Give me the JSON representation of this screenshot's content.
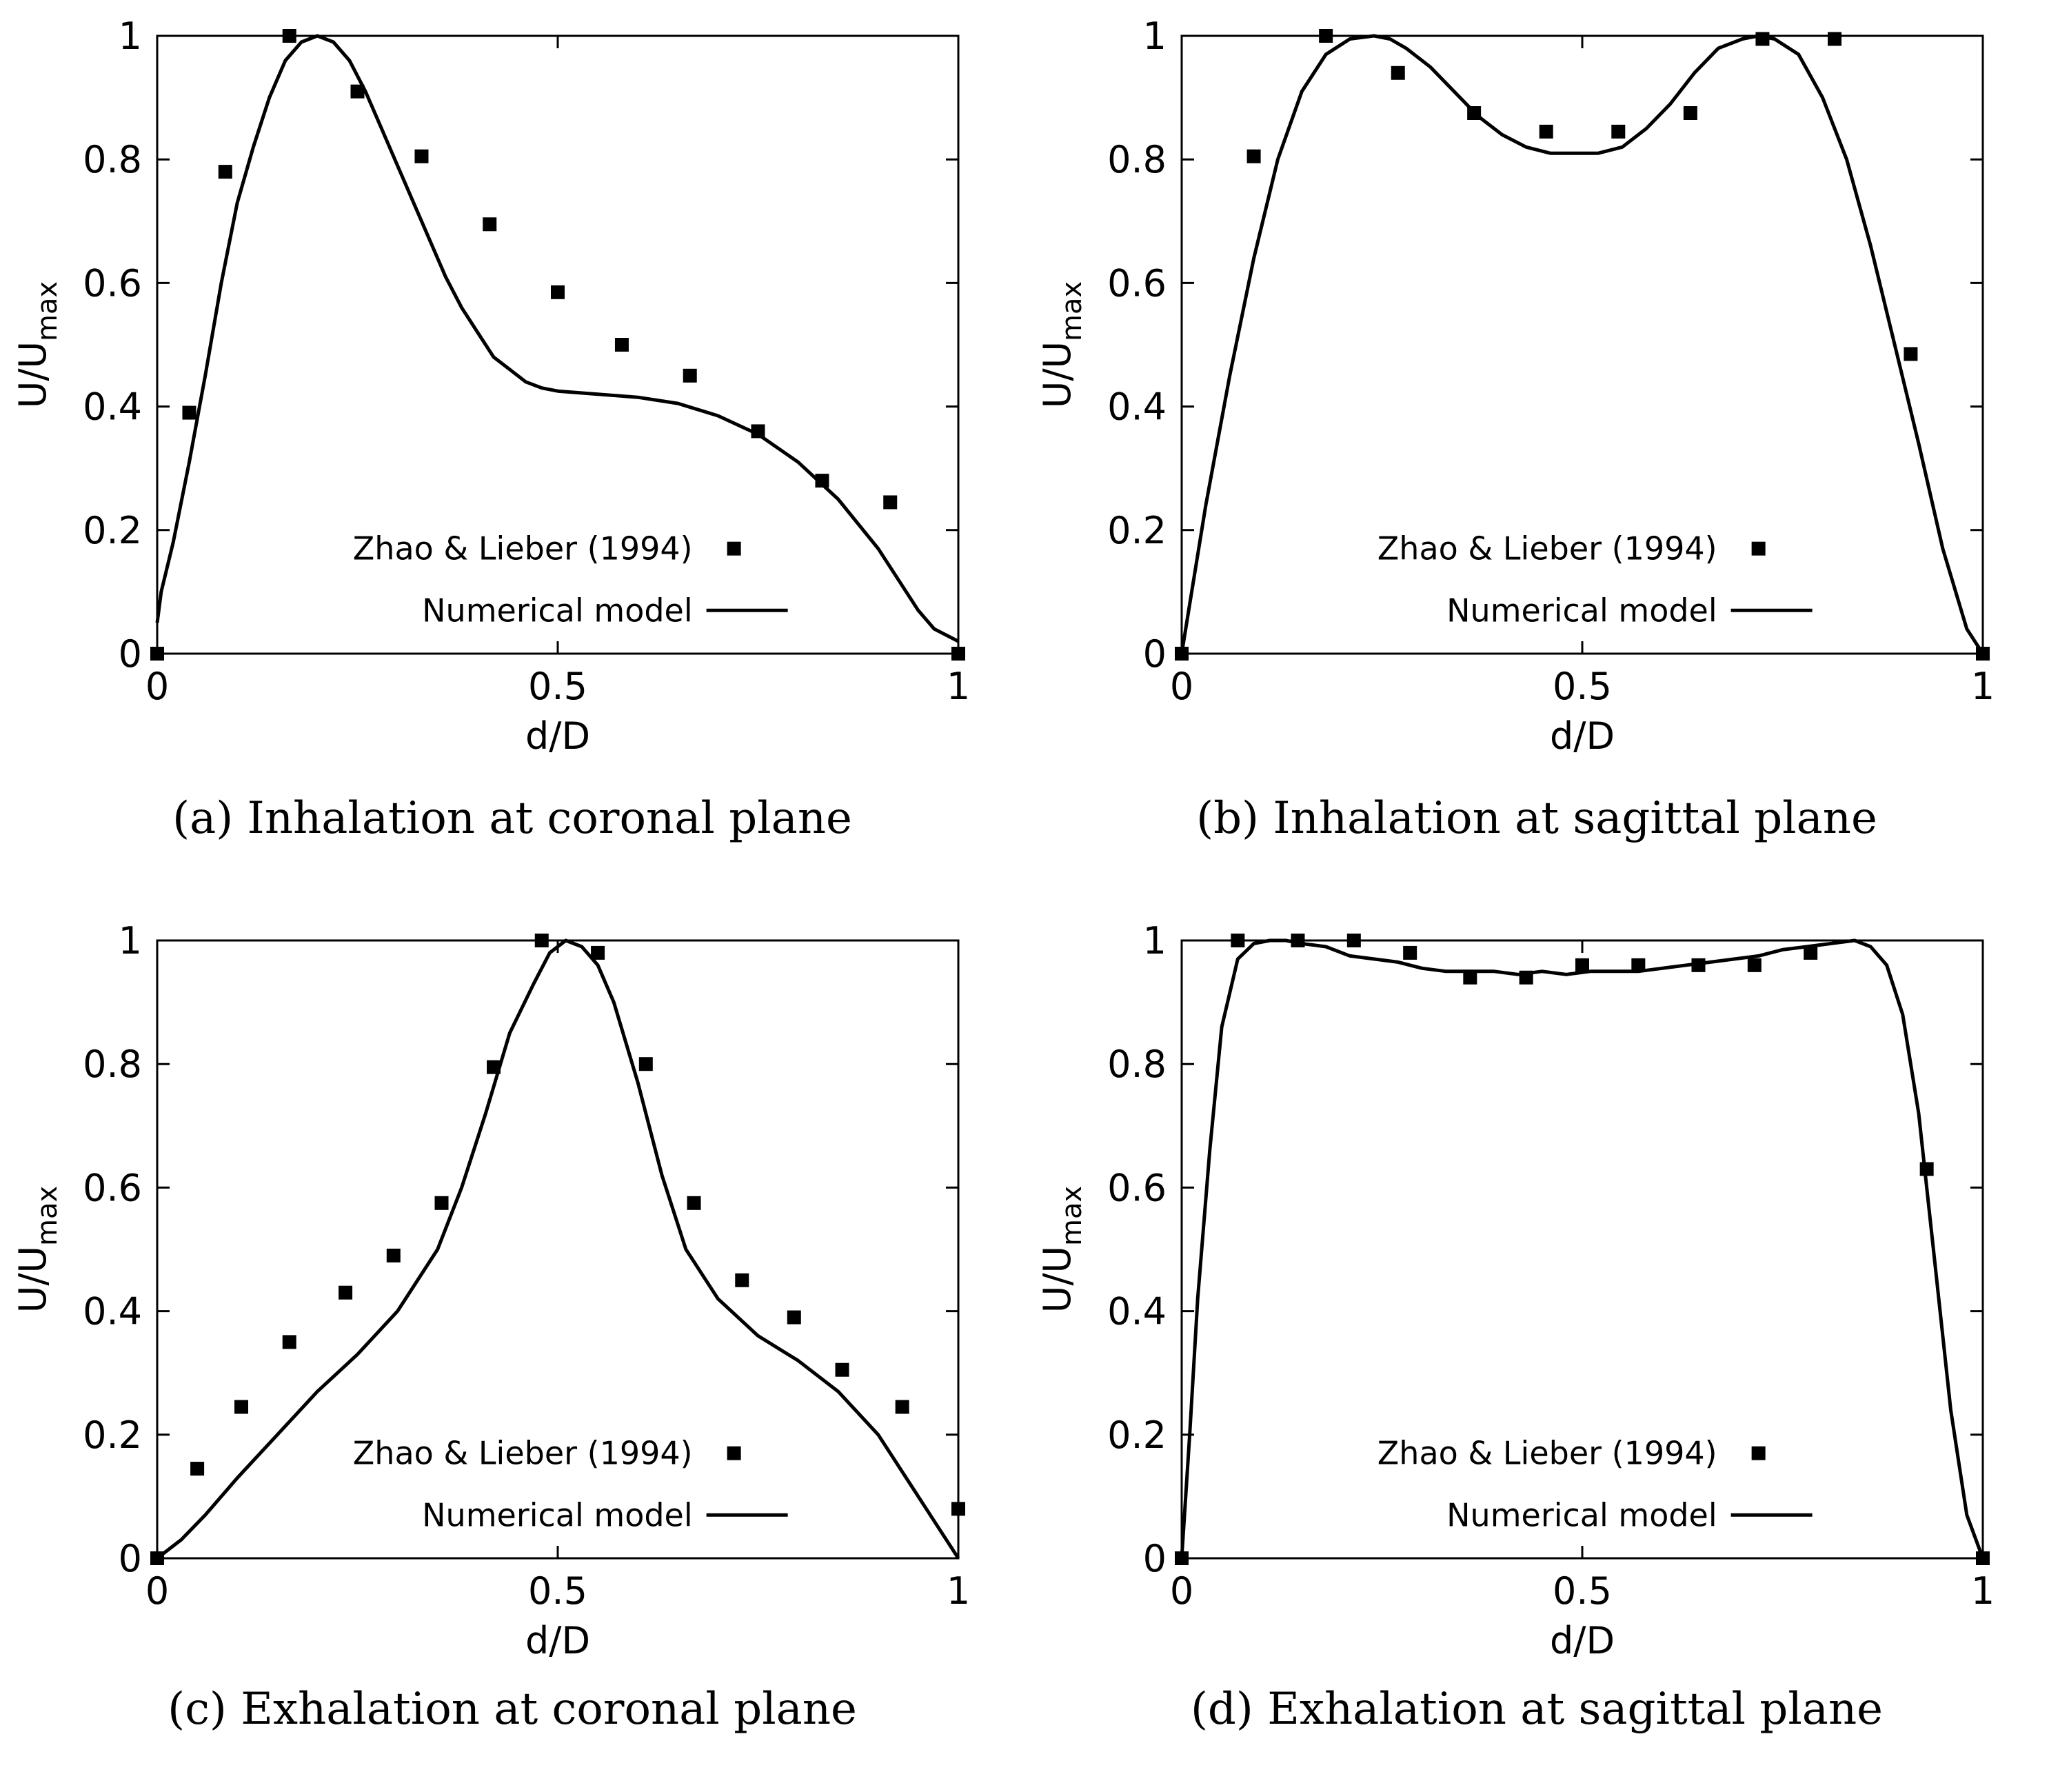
{
  "chart_data": [
    {
      "type": "line",
      "panel_label": "(a)",
      "caption": "(a) Inhalation at coronal plane",
      "xlabel": "d/D",
      "ylabel": "U/U",
      "ylabel_sub": "max",
      "xlim": [
        0,
        1
      ],
      "ylim": [
        0,
        1
      ],
      "xticks": [
        0,
        0.5,
        1
      ],
      "xtick_labels": [
        "0",
        "0.5",
        "1"
      ],
      "yticks": [
        0,
        0.2,
        0.4,
        0.6,
        0.8,
        1
      ],
      "ytick_labels": [
        "0",
        "0.2",
        "0.4",
        "0.6",
        "0.8",
        "1"
      ],
      "legend_position": "lower-center",
      "series": [
        {
          "name": "Zhao & Lieber (1994)",
          "style": "markers",
          "x": [
            0.0,
            0.04,
            0.085,
            0.165,
            0.25,
            0.33,
            0.415,
            0.5,
            0.58,
            0.665,
            0.75,
            0.83,
            0.915,
            1.0
          ],
          "y": [
            0.0,
            0.39,
            0.78,
            1.0,
            0.91,
            0.805,
            0.695,
            0.585,
            0.5,
            0.45,
            0.36,
            0.28,
            0.245,
            0.0
          ]
        },
        {
          "name": "Numerical model",
          "style": "line",
          "x": [
            0.0,
            0.005,
            0.02,
            0.04,
            0.06,
            0.08,
            0.1,
            0.12,
            0.14,
            0.16,
            0.18,
            0.2,
            0.22,
            0.24,
            0.26,
            0.28,
            0.3,
            0.32,
            0.34,
            0.36,
            0.38,
            0.4,
            0.42,
            0.44,
            0.46,
            0.48,
            0.5,
            0.55,
            0.6,
            0.65,
            0.7,
            0.75,
            0.8,
            0.85,
            0.9,
            0.95,
            0.97,
            1.0
          ],
          "y": [
            0.05,
            0.1,
            0.18,
            0.31,
            0.45,
            0.6,
            0.73,
            0.82,
            0.9,
            0.96,
            0.99,
            1.0,
            0.99,
            0.96,
            0.91,
            0.85,
            0.79,
            0.73,
            0.67,
            0.61,
            0.56,
            0.52,
            0.48,
            0.46,
            0.44,
            0.43,
            0.425,
            0.42,
            0.415,
            0.405,
            0.385,
            0.355,
            0.31,
            0.25,
            0.17,
            0.07,
            0.04,
            0.02
          ]
        }
      ]
    },
    {
      "type": "line",
      "panel_label": "(b)",
      "caption": "(b) Inhalation at sagittal plane",
      "xlabel": "d/D",
      "ylabel": "U/U",
      "ylabel_sub": "max",
      "xlim": [
        0,
        1
      ],
      "ylim": [
        0,
        1
      ],
      "xticks": [
        0,
        0.5,
        1
      ],
      "xtick_labels": [
        "0",
        "0.5",
        "1"
      ],
      "yticks": [
        0,
        0.2,
        0.4,
        0.6,
        0.8,
        1
      ],
      "ytick_labels": [
        "0",
        "0.2",
        "0.4",
        "0.6",
        "0.8",
        "1"
      ],
      "legend_position": "lower-center",
      "series": [
        {
          "name": "Zhao & Lieber (1994)",
          "style": "markers",
          "x": [
            0.0,
            0.09,
            0.18,
            0.27,
            0.365,
            0.455,
            0.545,
            0.635,
            0.725,
            0.815,
            0.91,
            1.0
          ],
          "y": [
            0.0,
            0.805,
            1.0,
            0.94,
            0.875,
            0.845,
            0.845,
            0.875,
            0.995,
            0.995,
            0.485,
            0.0
          ]
        },
        {
          "name": "Numerical model",
          "style": "line",
          "x": [
            0.0,
            0.01,
            0.03,
            0.06,
            0.09,
            0.12,
            0.15,
            0.18,
            0.21,
            0.24,
            0.26,
            0.28,
            0.31,
            0.34,
            0.37,
            0.4,
            0.43,
            0.46,
            0.49,
            0.5,
            0.52,
            0.55,
            0.58,
            0.61,
            0.64,
            0.67,
            0.7,
            0.72,
            0.74,
            0.77,
            0.8,
            0.83,
            0.86,
            0.89,
            0.92,
            0.95,
            0.98,
            1.0
          ],
          "y": [
            0.0,
            0.08,
            0.24,
            0.45,
            0.64,
            0.8,
            0.91,
            0.97,
            0.995,
            1.0,
            0.995,
            0.98,
            0.95,
            0.91,
            0.87,
            0.84,
            0.82,
            0.81,
            0.81,
            0.81,
            0.81,
            0.82,
            0.85,
            0.89,
            0.94,
            0.98,
            0.995,
            1.0,
            0.995,
            0.97,
            0.9,
            0.8,
            0.66,
            0.5,
            0.34,
            0.17,
            0.04,
            0.0
          ]
        }
      ]
    },
    {
      "type": "line",
      "panel_label": "(c)",
      "caption": "(c) Exhalation at coronal plane",
      "xlabel": "d/D",
      "ylabel": "U/U",
      "ylabel_sub": "max",
      "xlim": [
        0,
        1
      ],
      "ylim": [
        0,
        1
      ],
      "xticks": [
        0,
        0.5,
        1
      ],
      "xtick_labels": [
        "0",
        "0.5",
        "1"
      ],
      "yticks": [
        0,
        0.2,
        0.4,
        0.6,
        0.8,
        1
      ],
      "ytick_labels": [
        "0",
        "0.2",
        "0.4",
        "0.6",
        "0.8",
        "1"
      ],
      "legend_position": "lower-center",
      "series": [
        {
          "name": "Zhao & Lieber (1994)",
          "style": "markers",
          "x": [
            0.0,
            0.05,
            0.105,
            0.165,
            0.235,
            0.295,
            0.355,
            0.42,
            0.48,
            0.55,
            0.61,
            0.67,
            0.73,
            0.795,
            0.855,
            0.93,
            1.0
          ],
          "y": [
            0.0,
            0.145,
            0.245,
            0.35,
            0.43,
            0.49,
            0.575,
            0.795,
            1.0,
            0.98,
            0.8,
            0.575,
            0.45,
            0.39,
            0.305,
            0.245,
            0.08
          ]
        },
        {
          "name": "Numerical model",
          "style": "line",
          "x": [
            0.0,
            0.03,
            0.06,
            0.1,
            0.15,
            0.2,
            0.25,
            0.3,
            0.35,
            0.38,
            0.41,
            0.44,
            0.47,
            0.49,
            0.51,
            0.53,
            0.55,
            0.57,
            0.6,
            0.63,
            0.66,
            0.7,
            0.75,
            0.8,
            0.85,
            0.9,
            0.94,
            0.97,
            1.0
          ],
          "y": [
            0.0,
            0.03,
            0.07,
            0.13,
            0.2,
            0.27,
            0.33,
            0.4,
            0.5,
            0.6,
            0.72,
            0.85,
            0.93,
            0.98,
            1.0,
            0.99,
            0.96,
            0.9,
            0.77,
            0.62,
            0.5,
            0.42,
            0.36,
            0.32,
            0.27,
            0.2,
            0.12,
            0.06,
            0.0
          ]
        }
      ]
    },
    {
      "type": "line",
      "panel_label": "(d)",
      "caption": "(d) Exhalation at sagittal plane",
      "xlabel": "d/D",
      "ylabel": "U/U",
      "ylabel_sub": "max",
      "xlim": [
        0,
        1
      ],
      "ylim": [
        0,
        1
      ],
      "xticks": [
        0,
        0.5,
        1
      ],
      "xtick_labels": [
        "0",
        "0.5",
        "1"
      ],
      "yticks": [
        0,
        0.2,
        0.4,
        0.6,
        0.8,
        1
      ],
      "ytick_labels": [
        "0",
        "0.2",
        "0.4",
        "0.6",
        "0.8",
        "1"
      ],
      "legend_position": "lower-center",
      "series": [
        {
          "name": "Zhao & Lieber (1994)",
          "style": "markers",
          "x": [
            0.0,
            0.07,
            0.145,
            0.215,
            0.285,
            0.36,
            0.43,
            0.5,
            0.57,
            0.645,
            0.715,
            0.785,
            0.93,
            1.0
          ],
          "y": [
            0.0,
            1.0,
            1.0,
            1.0,
            0.98,
            0.94,
            0.94,
            0.96,
            0.96,
            0.96,
            0.96,
            0.98,
            0.63,
            0.0
          ]
        },
        {
          "name": "Numerical model",
          "style": "line",
          "x": [
            0.0,
            0.01,
            0.02,
            0.035,
            0.05,
            0.07,
            0.09,
            0.11,
            0.13,
            0.15,
            0.18,
            0.21,
            0.24,
            0.27,
            0.3,
            0.33,
            0.36,
            0.39,
            0.42,
            0.45,
            0.48,
            0.51,
            0.54,
            0.57,
            0.6,
            0.63,
            0.66,
            0.69,
            0.72,
            0.75,
            0.78,
            0.81,
            0.84,
            0.86,
            0.88,
            0.9,
            0.92,
            0.94,
            0.96,
            0.98,
            1.0
          ],
          "y": [
            0.0,
            0.2,
            0.42,
            0.66,
            0.86,
            0.97,
            0.995,
            1.0,
            1.0,
            0.995,
            0.99,
            0.975,
            0.97,
            0.965,
            0.955,
            0.95,
            0.95,
            0.95,
            0.945,
            0.95,
            0.945,
            0.95,
            0.95,
            0.95,
            0.955,
            0.96,
            0.965,
            0.97,
            0.975,
            0.985,
            0.99,
            0.995,
            1.0,
            0.99,
            0.96,
            0.88,
            0.72,
            0.48,
            0.24,
            0.07,
            0.0
          ]
        }
      ]
    }
  ]
}
